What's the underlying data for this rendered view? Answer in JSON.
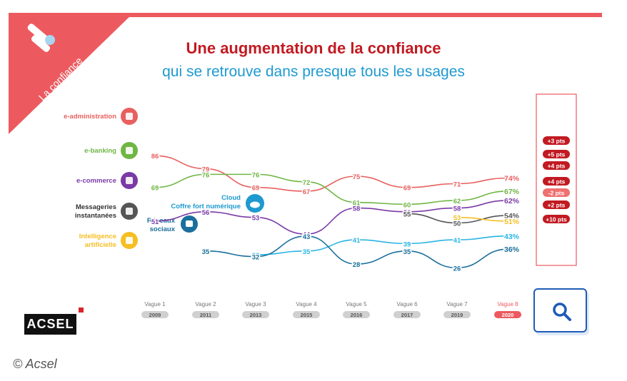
{
  "header": {
    "badge": "La confiance",
    "title": "Une augmentation de la confiance",
    "subtitle": "qui se retrouve dans presque tous les usages"
  },
  "colors": {
    "accent_red": "#ec5a5f",
    "title_red": "#c21a22",
    "subtitle_blue": "#1e9ad0"
  },
  "chart_data": {
    "type": "line",
    "title": "Une augmentation de la confiance",
    "subtitle": "qui se retrouve dans presque tous les usages",
    "x": [
      "Vague 1",
      "Vague 2",
      "Vague 3",
      "Vague 4",
      "Vague 5",
      "Vague 6",
      "Vague 7",
      "Vague 8"
    ],
    "x_years": [
      "2009",
      "2011",
      "2013",
      "2015",
      "2016",
      "2017",
      "2019",
      "2020"
    ],
    "series": [
      {
        "name": "e-administration",
        "color": "#e8605f",
        "icon": "document-icon",
        "values": [
          86,
          79,
          69,
          67,
          75,
          69,
          71,
          74
        ],
        "labels": [
          "86",
          "79",
          "69",
          "67",
          "75",
          "69",
          "71",
          "74%"
        ],
        "change": "+3 pts"
      },
      {
        "name": "e-banking",
        "color": "#6fb644",
        "icon": "euro-icon",
        "values": [
          69,
          76,
          76,
          72,
          61,
          60,
          62,
          67
        ],
        "labels": [
          "69",
          "76",
          "76",
          "72",
          "61",
          "60",
          "62",
          "67%"
        ],
        "change": "+5 pts"
      },
      {
        "name": "e-commerce",
        "color": "#7a3aa6",
        "icon": "cart-icon",
        "values": [
          51,
          56,
          53,
          44,
          58,
          56,
          58,
          62
        ],
        "labels": [
          "51",
          "56",
          "53",
          "44",
          "58",
          "56",
          "58",
          "62%"
        ],
        "change": "+4 pts"
      },
      {
        "name": "Messageries instantanées",
        "color": "#555555",
        "icon": "chat-icon",
        "values": [
          null,
          null,
          null,
          null,
          null,
          55,
          50,
          54
        ],
        "labels": [
          "",
          "",
          "",
          "",
          "",
          "55",
          "50",
          "54%"
        ],
        "change": "+4 pts"
      },
      {
        "name": "Intelligence artificielle",
        "color": "#f5be23",
        "icon": "robot-icon",
        "values": [
          null,
          null,
          null,
          null,
          null,
          null,
          53,
          51
        ],
        "labels": [
          "",
          "",
          "",
          "",
          "",
          "",
          "53",
          "51%"
        ],
        "change": "-2 pts"
      },
      {
        "name": "Cloud Coffre fort numérique",
        "color": "#2ab4e4",
        "icon": "cloud-icon",
        "values": [
          null,
          null,
          33,
          35,
          41,
          39,
          41,
          43
        ],
        "labels": [
          "",
          "",
          "33",
          "35",
          "41",
          "39",
          "41",
          "43%"
        ],
        "change": "+2 pts"
      },
      {
        "name": "Réseaux sociaux",
        "color": "#1a6f9c",
        "icon": "people-icon",
        "values": [
          null,
          35,
          32,
          43,
          28,
          35,
          26,
          36
        ],
        "labels": [
          "",
          "35",
          "32",
          "43",
          "28",
          "35",
          "26",
          "36%"
        ],
        "change": "+10 pts"
      }
    ]
  },
  "logo": {
    "text": "ACSEL"
  },
  "caption": "© Acsel",
  "zoom_button": {
    "icon": "magnifier-icon"
  }
}
